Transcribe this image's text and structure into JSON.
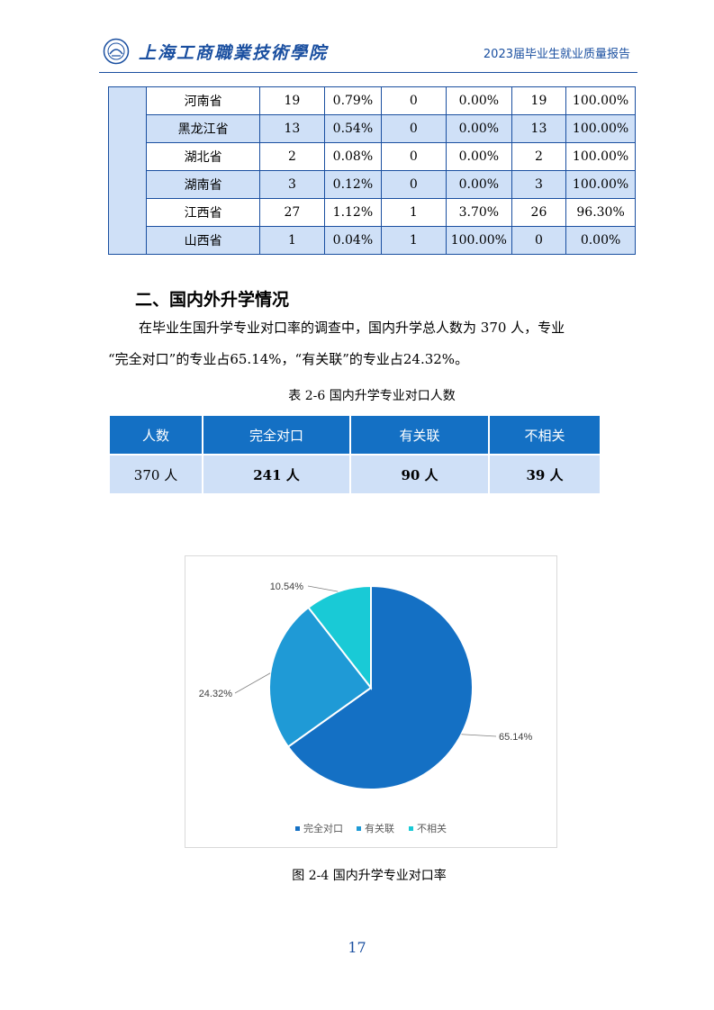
{
  "header": {
    "school_name": "上海工商職業技術學院",
    "report_title": "2023届毕业生就业质量报告"
  },
  "province_table": [
    {
      "province": "河南省",
      "c1": "19",
      "p1": "0.79%",
      "c2": "0",
      "p2": "0.00%",
      "c3": "19",
      "p3": "100.00%"
    },
    {
      "province": "黑龙江省",
      "c1": "13",
      "p1": "0.54%",
      "c2": "0",
      "p2": "0.00%",
      "c3": "13",
      "p3": "100.00%"
    },
    {
      "province": "湖北省",
      "c1": "2",
      "p1": "0.08%",
      "c2": "0",
      "p2": "0.00%",
      "c3": "2",
      "p3": "100.00%"
    },
    {
      "province": "湖南省",
      "c1": "3",
      "p1": "0.12%",
      "c2": "0",
      "p2": "0.00%",
      "c3": "3",
      "p3": "100.00%"
    },
    {
      "province": "江西省",
      "c1": "27",
      "p1": "1.12%",
      "c2": "1",
      "p2": "3.70%",
      "c3": "26",
      "p3": "96.30%"
    },
    {
      "province": "山西省",
      "c1": "1",
      "p1": "0.04%",
      "c2": "1",
      "p2": "100.00%",
      "c3": "0",
      "p3": "0.00%"
    }
  ],
  "section": {
    "heading": "二、国内外升学情况",
    "para1": "在毕业生国升学专业对口率的调查中，国内升学总人数为 370 人，专业",
    "para2": "“完全对口”的专业占65.14%，“有关联”的专业占24.32%。"
  },
  "table2": {
    "caption": "表 2-6  国内升学专业对口人数",
    "headers": [
      "人数",
      "完全对口",
      "有关联",
      "不相关"
    ],
    "values": [
      "370 人",
      "241 人",
      "90 人",
      "39 人"
    ]
  },
  "chart_data": {
    "type": "pie",
    "categories": [
      "完全对口",
      "有关联",
      "不相关"
    ],
    "values": [
      65.14,
      24.32,
      10.54
    ],
    "labels": [
      "65.14%",
      "24.32%",
      "10.54%"
    ],
    "colors": [
      "#1470c4",
      "#1f9ad6",
      "#19cad6"
    ],
    "legend_position": "bottom"
  },
  "figure_caption": "图 2-4  国内升学专业对口率",
  "page_number": "17"
}
